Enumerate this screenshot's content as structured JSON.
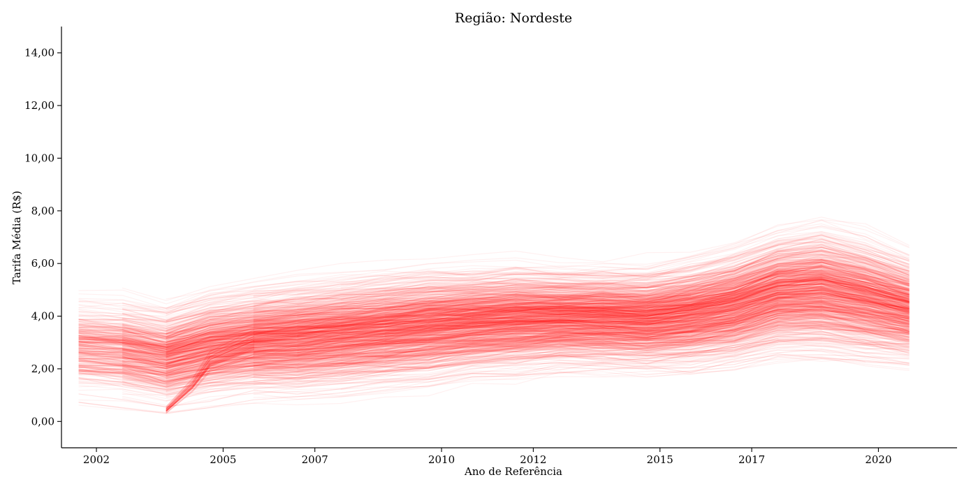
{
  "chart_data": {
    "type": "line",
    "title": "Região: Nordeste",
    "xlabel": "Ano de Referência",
    "ylabel": "Tarifa Média (R$)",
    "xlim": [
      2001.2,
      2021.7
    ],
    "ylim": [
      -1.0,
      15.0
    ],
    "x_ticks": [
      {
        "value": 2002.0,
        "label": "2002"
      },
      {
        "value": 2004.9,
        "label": "2005"
      },
      {
        "value": 2007.0,
        "label": "2007"
      },
      {
        "value": 2009.9,
        "label": "2010"
      },
      {
        "value": 2012.0,
        "label": "2012"
      },
      {
        "value": 2014.9,
        "label": "2015"
      },
      {
        "value": 2017.0,
        "label": "2017"
      },
      {
        "value": 2019.9,
        "label": "2020"
      }
    ],
    "y_ticks": [
      {
        "value": 0,
        "label": "0,00"
      },
      {
        "value": 2,
        "label": "2,00"
      },
      {
        "value": 4,
        "label": "4,00"
      },
      {
        "value": 6,
        "label": "6,00"
      },
      {
        "value": 8,
        "label": "8,00"
      },
      {
        "value": 10,
        "label": "10,00"
      },
      {
        "value": 12,
        "label": "12,00"
      },
      {
        "value": 14,
        "label": "14,00"
      }
    ],
    "grid": false,
    "line_color": "#ff0000",
    "line_opacity": 0.06,
    "series_count": 1000,
    "band": {
      "x": [
        2001.6,
        2002.6,
        2003.6,
        2004.6,
        2005.6,
        2006.6,
        2007.6,
        2008.6,
        2009.6,
        2010.6,
        2011.6,
        2012.6,
        2013.6,
        2014.6,
        2015.6,
        2016.6,
        2017.6,
        2018.6,
        2019.6,
        2020.6
      ],
      "median": [
        2.9,
        2.8,
        2.5,
        2.9,
        3.1,
        3.2,
        3.35,
        3.5,
        3.65,
        3.8,
        3.9,
        3.95,
        3.95,
        3.9,
        4.1,
        4.4,
        4.9,
        5.0,
        4.7,
        4.3
      ],
      "spread": [
        0.75,
        0.75,
        0.75,
        0.8,
        0.8,
        0.85,
        0.85,
        0.85,
        0.85,
        0.8,
        0.8,
        0.75,
        0.75,
        0.75,
        0.8,
        0.85,
        0.9,
        0.95,
        0.9,
        0.8
      ]
    },
    "dip_group": {
      "x": [
        2003.6,
        2004.2,
        2004.6,
        2005.6
      ],
      "values": [
        0.45,
        1.4,
        2.3,
        3.0
      ]
    }
  }
}
